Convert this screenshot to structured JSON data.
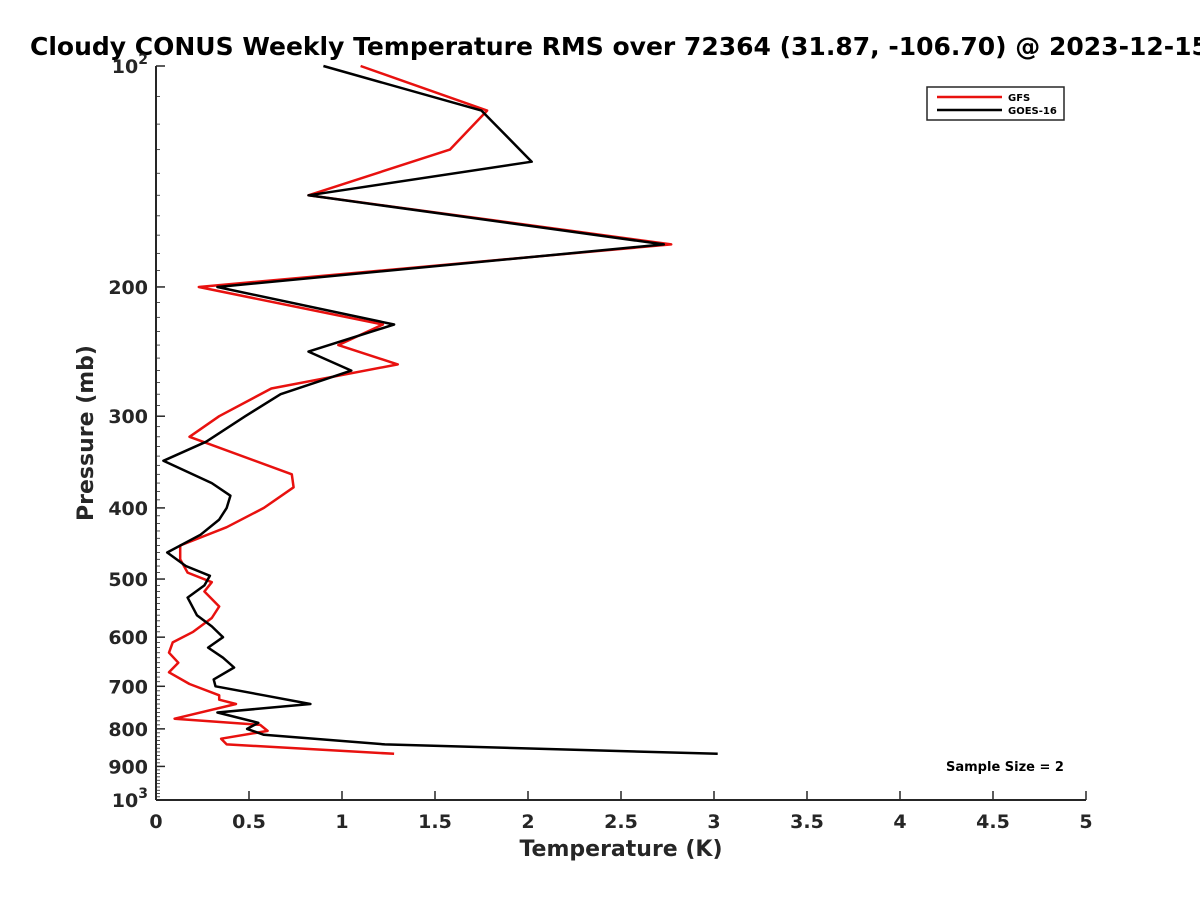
{
  "chart_data": {
    "type": "line",
    "title": "Cloudy CONUS Weekly Temperature RMS over 72364 (31.87, -106.70) @ 2023-12-15",
    "xlabel": "Temperature (K)",
    "ylabel": "Pressure (mb)",
    "xlim": [
      0,
      5
    ],
    "ylim": [
      100,
      1000
    ],
    "y_scale": "log",
    "y_reversed": true,
    "grid": false,
    "legend_position": "top-right",
    "x_ticks": [
      0,
      0.5,
      1,
      1.5,
      2,
      2.5,
      3,
      3.5,
      4,
      4.5,
      5
    ],
    "x_tick_labels": [
      "0",
      "0.5",
      "1",
      "1.5",
      "2",
      "2.5",
      "3",
      "3.5",
      "4",
      "4.5",
      "5"
    ],
    "y_ticks": [
      100,
      200,
      300,
      400,
      500,
      600,
      700,
      800,
      900,
      1000
    ],
    "y_tick_labels": [
      {
        "base": "10",
        "exp": "2"
      },
      {
        "base": "200",
        "exp": ""
      },
      {
        "base": "300",
        "exp": ""
      },
      {
        "base": "400",
        "exp": ""
      },
      {
        "base": "500",
        "exp": ""
      },
      {
        "base": "600",
        "exp": ""
      },
      {
        "base": "700",
        "exp": ""
      },
      {
        "base": "800",
        "exp": ""
      },
      {
        "base": "900",
        "exp": ""
      },
      {
        "base": "10",
        "exp": "3"
      }
    ],
    "series": [
      {
        "name": "GFS",
        "color": "#e8110f",
        "points": [
          [
            1.1,
            100
          ],
          [
            1.78,
            115
          ],
          [
            1.58,
            130
          ],
          [
            0.82,
            150
          ],
          [
            2.77,
            175
          ],
          [
            0.23,
            200
          ],
          [
            1.22,
            225
          ],
          [
            0.98,
            240
          ],
          [
            1.3,
            255
          ],
          [
            0.62,
            275
          ],
          [
            0.34,
            300
          ],
          [
            0.18,
            320
          ],
          [
            0.73,
            360
          ],
          [
            0.74,
            375
          ],
          [
            0.58,
            400
          ],
          [
            0.38,
            425
          ],
          [
            0.13,
            450
          ],
          [
            0.13,
            470
          ],
          [
            0.17,
            490
          ],
          [
            0.3,
            505
          ],
          [
            0.26,
            520
          ],
          [
            0.34,
            545
          ],
          [
            0.3,
            565
          ],
          [
            0.2,
            590
          ],
          [
            0.09,
            610
          ],
          [
            0.07,
            630
          ],
          [
            0.12,
            650
          ],
          [
            0.07,
            670
          ],
          [
            0.18,
            695
          ],
          [
            0.34,
            720
          ],
          [
            0.34,
            730
          ],
          [
            0.43,
            740
          ],
          [
            0.1,
            775
          ],
          [
            0.56,
            790
          ],
          [
            0.6,
            805
          ],
          [
            0.35,
            825
          ],
          [
            0.38,
            840
          ],
          [
            1.28,
            865
          ]
        ]
      },
      {
        "name": "GOES-16",
        "color": "#000000",
        "points": [
          [
            0.9,
            100
          ],
          [
            1.75,
            115
          ],
          [
            2.02,
            135
          ],
          [
            0.82,
            150
          ],
          [
            2.73,
            175
          ],
          [
            0.33,
            200
          ],
          [
            1.28,
            225
          ],
          [
            0.82,
            245
          ],
          [
            1.05,
            260
          ],
          [
            0.67,
            280
          ],
          [
            0.48,
            300
          ],
          [
            0.27,
            325
          ],
          [
            0.04,
            345
          ],
          [
            0.3,
            370
          ],
          [
            0.4,
            385
          ],
          [
            0.38,
            400
          ],
          [
            0.34,
            415
          ],
          [
            0.24,
            435
          ],
          [
            0.06,
            460
          ],
          [
            0.16,
            480
          ],
          [
            0.29,
            495
          ],
          [
            0.26,
            510
          ],
          [
            0.17,
            530
          ],
          [
            0.22,
            560
          ],
          [
            0.3,
            580
          ],
          [
            0.36,
            600
          ],
          [
            0.28,
            620
          ],
          [
            0.36,
            640
          ],
          [
            0.42,
            660
          ],
          [
            0.31,
            685
          ],
          [
            0.32,
            700
          ],
          [
            0.58,
            720
          ],
          [
            0.83,
            740
          ],
          [
            0.33,
            760
          ],
          [
            0.55,
            785
          ],
          [
            0.49,
            800
          ],
          [
            0.58,
            815
          ],
          [
            1.23,
            840
          ],
          [
            3.02,
            865
          ]
        ]
      }
    ],
    "annotation": "Sample Size = 2"
  }
}
